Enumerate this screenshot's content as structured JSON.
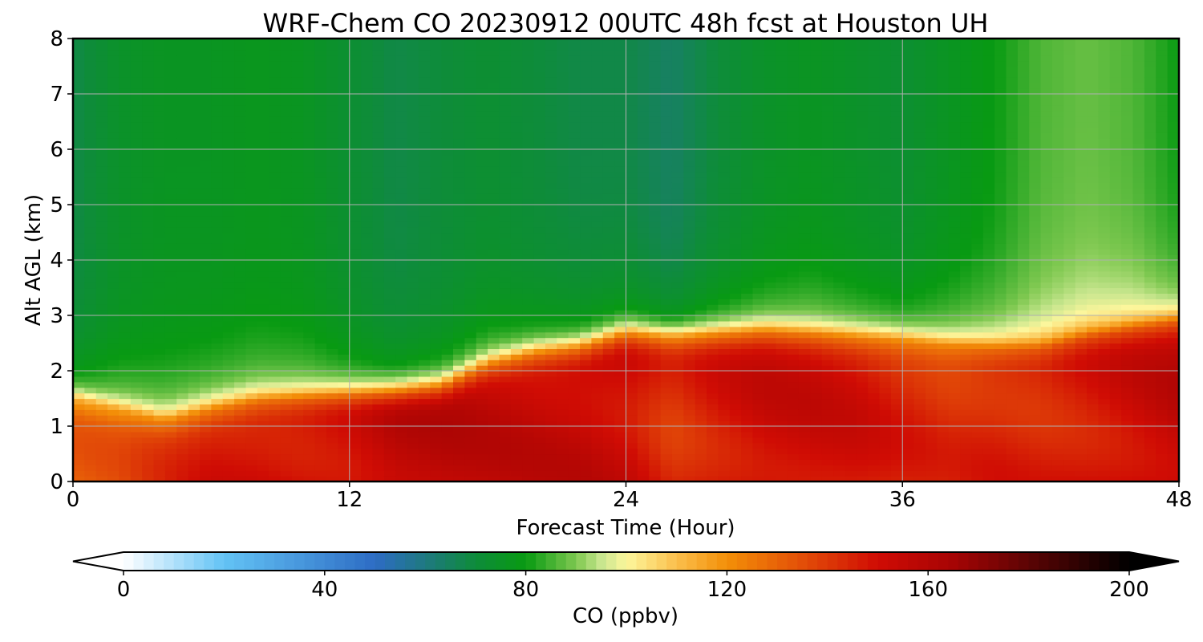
{
  "chart_data": {
    "type": "heatmap",
    "title": "WRF-Chem CO  20230912 00UTC 48h fcst at Houston UH",
    "xlabel": "Forecast Time (Hour)",
    "ylabel": "Alt AGL (km)",
    "xlim": [
      0,
      48
    ],
    "ylim": [
      0,
      8
    ],
    "xticks": [
      0,
      12,
      24,
      36,
      48
    ],
    "yticks": [
      0,
      1,
      2,
      3,
      4,
      5,
      6,
      7,
      8
    ],
    "grid": true,
    "x": [
      0,
      2,
      4,
      6,
      8,
      10,
      12,
      14,
      16,
      18,
      20,
      22,
      24,
      26,
      28,
      30,
      32,
      34,
      36,
      38,
      40,
      42,
      44,
      46,
      48
    ],
    "mixed_layer_top_km": [
      1.5,
      1.3,
      1.1,
      1.3,
      1.45,
      1.5,
      1.55,
      1.6,
      1.7,
      2.1,
      2.3,
      2.4,
      2.65,
      2.6,
      2.65,
      2.7,
      2.65,
      2.6,
      2.55,
      2.45,
      2.4,
      2.4,
      2.6,
      2.75,
      2.9
    ],
    "boundary_layer_co_ppbv": [
      130,
      132,
      140,
      148,
      150,
      150,
      152,
      158,
      158,
      156,
      155,
      155,
      152,
      142,
      148,
      152,
      152,
      150,
      145,
      142,
      145,
      145,
      148,
      152,
      156
    ],
    "free_troposphere_co_ppbv": [
      68,
      74,
      76,
      76,
      77,
      76,
      72,
      68,
      70,
      72,
      70,
      68,
      68,
      64,
      70,
      74,
      76,
      74,
      72,
      76,
      80,
      86,
      88,
      86,
      80
    ],
    "colorbar": {
      "label": "CO  (ppbv)",
      "min": 0,
      "max": 200,
      "ticks": [
        0,
        40,
        80,
        120,
        160,
        200
      ],
      "extend": "both",
      "colors": [
        {
          "v": 0,
          "c": "#ffffff"
        },
        {
          "v": 20,
          "c": "#63c3f5"
        },
        {
          "v": 50,
          "c": "#2d6cc4"
        },
        {
          "v": 62,
          "c": "#1b7c72"
        },
        {
          "v": 70,
          "c": "#0e8c3a"
        },
        {
          "v": 80,
          "c": "#089a12"
        },
        {
          "v": 90,
          "c": "#7ec850"
        },
        {
          "v": 95,
          "c": "#c8e68e"
        },
        {
          "v": 100,
          "c": "#fcf69c"
        },
        {
          "v": 110,
          "c": "#fbbf4c"
        },
        {
          "v": 120,
          "c": "#f38f08"
        },
        {
          "v": 135,
          "c": "#e34e08"
        },
        {
          "v": 150,
          "c": "#d00c04"
        },
        {
          "v": 165,
          "c": "#a60404"
        },
        {
          "v": 180,
          "c": "#5c0404"
        },
        {
          "v": 200,
          "c": "#000000"
        }
      ]
    }
  }
}
